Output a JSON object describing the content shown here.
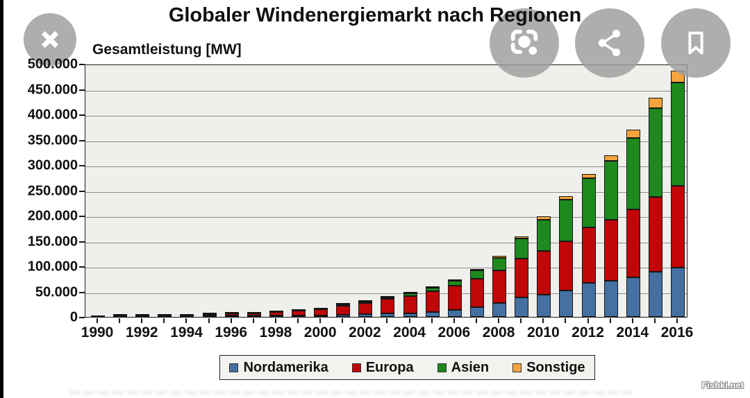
{
  "watermark": "Fishki.net",
  "viewer": {
    "buttons": [
      {
        "name": "close",
        "icon": "close-icon"
      },
      {
        "name": "lens-search",
        "icon": "lens-search-icon"
      },
      {
        "name": "share",
        "icon": "share-icon"
      },
      {
        "name": "bookmark",
        "icon": "bookmark-icon"
      }
    ],
    "button_color": "#9d9d9d"
  },
  "chart_data": {
    "type": "bar",
    "stacked": true,
    "title": "Globaler Windenergiemarkt nach Regionen",
    "y_caption": "Gesamtleistung [MW]",
    "xlabel": "",
    "ylabel": "Gesamtleistung [MW]",
    "ylim": [
      0,
      500000
    ],
    "grid": "horizontal",
    "legend_position": "bottom",
    "x": [
      1990,
      1991,
      1992,
      1993,
      1994,
      1995,
      1996,
      1997,
      1998,
      1999,
      2000,
      2001,
      2002,
      2003,
      2004,
      2005,
      2006,
      2007,
      2008,
      2009,
      2010,
      2011,
      2012,
      2013,
      2014,
      2015,
      2016
    ],
    "xtick_labels": [
      "1990",
      "1992",
      "1994",
      "1996",
      "1998",
      "2000",
      "2002",
      "2004",
      "2006",
      "2008",
      "2010",
      "2012",
      "2014",
      "2016"
    ],
    "ytick_values": [
      0,
      50000,
      100000,
      150000,
      200000,
      250000,
      300000,
      350000,
      400000,
      450000,
      500000
    ],
    "ytick_labels": [
      "0",
      "50.000",
      "100.000",
      "150.000",
      "200.000",
      "250.000",
      "300.000",
      "350.000",
      "400.000",
      "450.000",
      "500.000"
    ],
    "series": [
      {
        "name": "Nordamerika",
        "color": "#4470a2",
        "values": [
          1500,
          1550,
          1600,
          1650,
          1700,
          1700,
          1650,
          1650,
          2000,
          2600,
          2700,
          4450,
          4950,
          6700,
          7300,
          9800,
          13100,
          18700,
          27500,
          38400,
          44200,
          52200,
          67600,
          70900,
          78000,
          88700,
          97600
        ]
      },
      {
        "name": "Europa",
        "color": "#c00606",
        "values": [
          450,
          650,
          850,
          1250,
          1700,
          2500,
          3500,
          4750,
          6450,
          9700,
          12900,
          17300,
          23100,
          28500,
          34400,
          40500,
          48000,
          56500,
          64900,
          76200,
          86100,
          96600,
          109200,
          121500,
          134000,
          147800,
          161300
        ]
      },
      {
        "name": "Asien",
        "color": "#1e8a1e",
        "values": [
          50,
          80,
          120,
          150,
          250,
          600,
          1000,
          1200,
          1700,
          1800,
          1800,
          2100,
          2600,
          3600,
          4800,
          7500,
          10700,
          16100,
          24500,
          39700,
          61100,
          82600,
          97900,
          116000,
          142000,
          175600,
          203600
        ]
      },
      {
        "name": "Sonstige",
        "color": "#f5a43b",
        "values": [
          0,
          0,
          0,
          0,
          50,
          100,
          150,
          200,
          250,
          400,
          500,
          600,
          700,
          900,
          1150,
          1300,
          2150,
          2600,
          3800,
          4700,
          6700,
          6800,
          8200,
          10300,
          15900,
          20600,
          24300
        ]
      }
    ]
  }
}
